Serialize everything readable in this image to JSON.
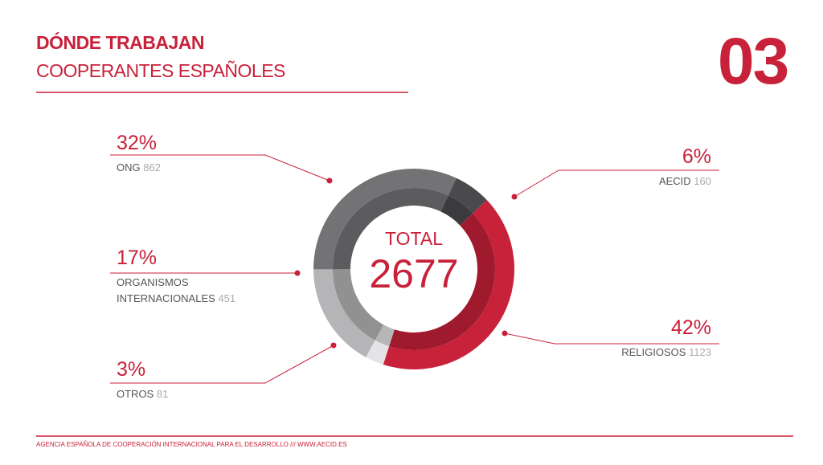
{
  "page_number": "03",
  "footer": "AGENCIA ESPAÑOLA DE COOPERACIÓN INTERNACIONAL PARA EL DESARROLLO /// WWW.AECID.ES",
  "chart_data": {
    "type": "pie",
    "title": "DÓNDE TRABAJAN",
    "subtitle": "COOPERANTES ESPAÑOLES",
    "center_label": "TOTAL",
    "total": 2677,
    "categories": [
      "AECID",
      "RELIGIOSOS",
      "OTROS",
      "ORGANISMOS INTERNACIONALES",
      "ONG"
    ],
    "values": [
      6,
      42,
      3,
      17,
      32
    ],
    "value_labels": [
      "6%",
      "42%",
      "3%",
      "17%",
      "32%"
    ],
    "counts": [
      160,
      1123,
      81,
      451,
      862
    ],
    "colors": [
      "#4a4a4c",
      "#c8213a",
      "#e4e4e6",
      "#b5b5b7",
      "#737375"
    ]
  }
}
